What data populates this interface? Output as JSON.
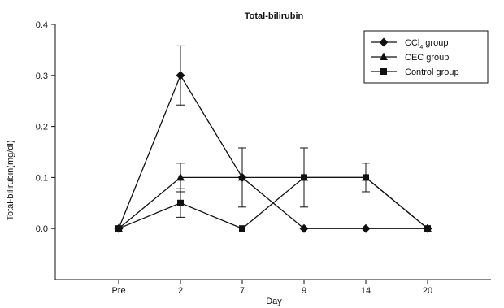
{
  "chart_data": {
    "type": "line",
    "title": "Total-bilirubin",
    "xlabel": "Day",
    "ylabel": "Total-bilirubin(mg/dl)",
    "categories": [
      "Pre",
      "2",
      "7",
      "9",
      "14",
      "20"
    ],
    "ylim": [
      -0.1,
      0.4
    ],
    "yticks": [
      "0.0",
      "0.1",
      "0.2",
      "0.3",
      "0.4"
    ],
    "grid": false,
    "legend_position": "top-right",
    "series": [
      {
        "name": "CCl",
        "name_subscript": "4",
        "name_suffix": " group",
        "marker": "diamond",
        "values": [
          0.0,
          0.3,
          0.1,
          0.0,
          0.0,
          0.0
        ],
        "errors": [
          0,
          0.058,
          0.058,
          0,
          0,
          0
        ]
      },
      {
        "name": "CEC group",
        "marker": "triangle",
        "values": [
          0.0,
          0.1,
          0.1,
          0.1,
          0.1,
          0.0
        ],
        "errors": [
          0,
          0.028,
          0,
          0.058,
          0.028,
          0
        ]
      },
      {
        "name": "Control group",
        "marker": "square",
        "values": [
          0.0,
          0.05,
          0.0,
          0.1,
          0.1,
          0.0
        ],
        "errors": [
          0,
          0.028,
          0,
          0,
          0,
          0
        ]
      }
    ]
  }
}
